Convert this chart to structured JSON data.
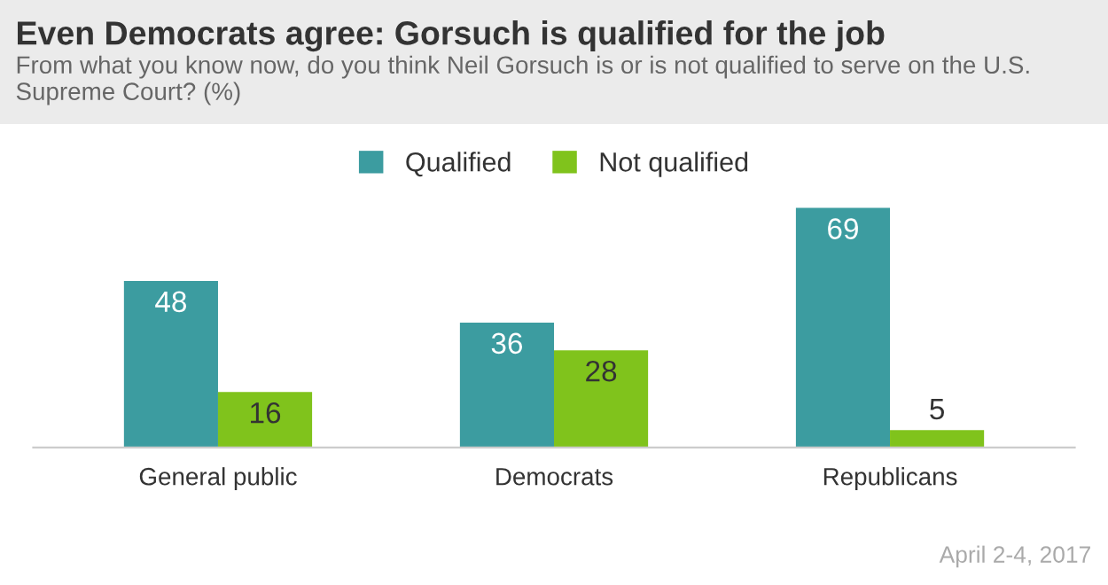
{
  "chart_data": {
    "type": "bar",
    "title": "Even Democrats agree: Gorsuch is qualified for the job",
    "subtitle": "From what you know now, do you think Neil Gorsuch is or is not qualified to serve on the U.S. Supreme Court? (%)",
    "categories": [
      "General public",
      "Democrats",
      "Republicans"
    ],
    "series": [
      {
        "name": "Qualified",
        "color": "#3c9ca0",
        "values": [
          48,
          36,
          69
        ]
      },
      {
        "name": "Not qualified",
        "color": "#80c31c",
        "values": [
          16,
          28,
          5
        ]
      }
    ],
    "data_labels": true,
    "legend": "top",
    "grid": false,
    "annotations": [
      "April 2-4, 2017"
    ]
  }
}
